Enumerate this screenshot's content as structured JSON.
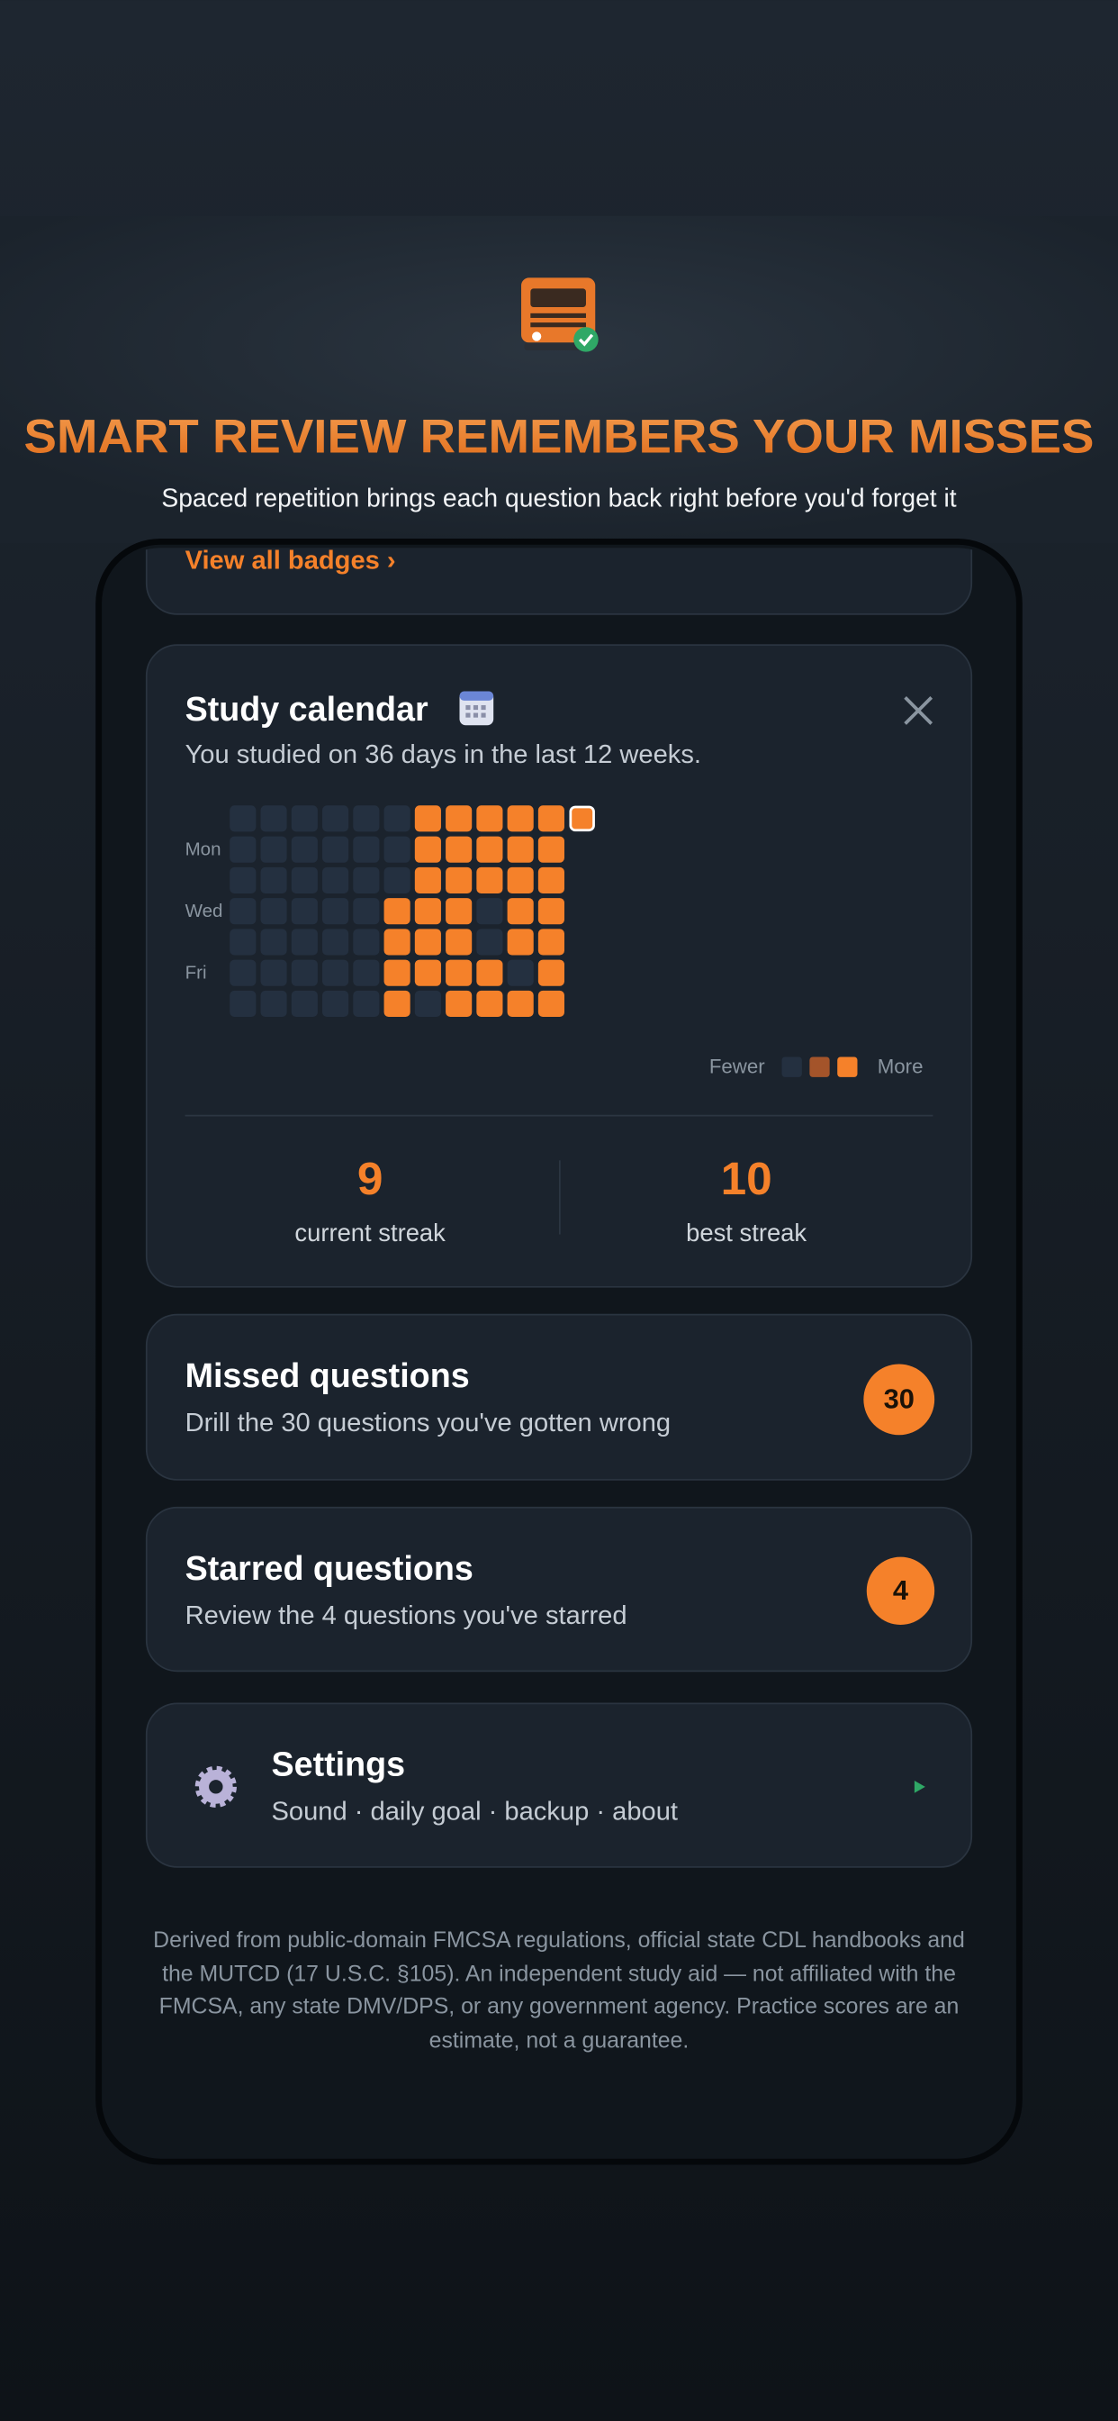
{
  "header": {
    "title": "SMART REVIEW REMEMBERS YOUR MISSES",
    "subtitle": "Spaced repetition brings each question back right before you'd forget it"
  },
  "badges_link": "View all badges ›",
  "calendar": {
    "title": "Study calendar",
    "summary": "You studied on 36 days in the last 12 weeks.",
    "day_labels": [
      null,
      "Mon",
      null,
      "Wed",
      null,
      "Fri",
      null
    ],
    "level_colors": [
      "#243040",
      "#a4542a",
      "#f5812a"
    ],
    "grid": [
      [
        0,
        0,
        0,
        0,
        0,
        0,
        2,
        2,
        2,
        2,
        2,
        2
      ],
      [
        0,
        0,
        0,
        0,
        0,
        0,
        2,
        2,
        2,
        2,
        2,
        null
      ],
      [
        0,
        0,
        0,
        0,
        0,
        0,
        2,
        2,
        2,
        2,
        2,
        null
      ],
      [
        0,
        0,
        0,
        0,
        0,
        2,
        2,
        2,
        0,
        2,
        2,
        null
      ],
      [
        0,
        0,
        0,
        0,
        0,
        2,
        2,
        2,
        0,
        2,
        2,
        null
      ],
      [
        0,
        0,
        0,
        0,
        0,
        2,
        2,
        2,
        2,
        0,
        2,
        null
      ],
      [
        0,
        0,
        0,
        0,
        0,
        2,
        0,
        2,
        2,
        2,
        2,
        null
      ]
    ],
    "today": {
      "row": 0,
      "col": 11
    },
    "legend": {
      "low": "Fewer",
      "high": "More"
    },
    "stats": [
      {
        "value": 9,
        "label": "current streak"
      },
      {
        "value": 10,
        "label": "best streak"
      }
    ]
  },
  "cards": [
    {
      "title": "Missed questions",
      "subtitle": "Drill the 30 questions you've gotten wrong",
      "count": 30
    },
    {
      "title": "Starred questions",
      "subtitle": "Review the 4 questions you've starred",
      "count": 4
    }
  ],
  "settings": {
    "title": "Settings",
    "subtitle": "Sound · daily goal · backup · about"
  },
  "footer": "Derived from public-domain FMCSA regulations, official state CDL handbooks and the MUTCD (17 U.S.C. §105). An independent study aid — not affiliated with the FMCSA, any state DMV/DPS, or any government agency. Practice scores are an estimate, not a guarantee."
}
